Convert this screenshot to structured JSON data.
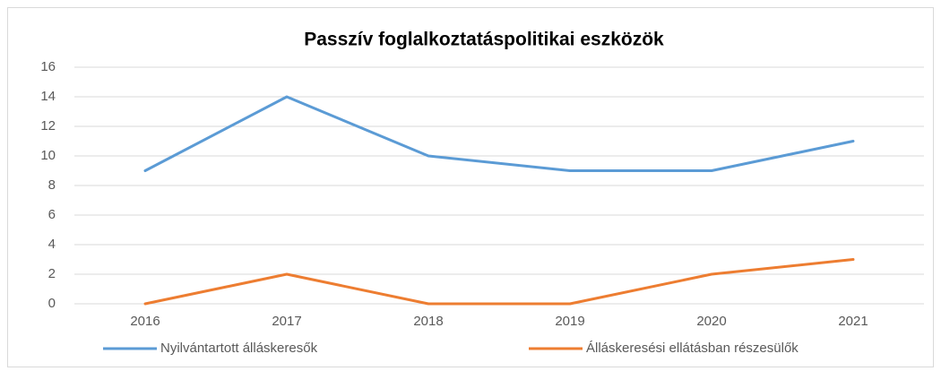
{
  "chart_data": {
    "type": "line",
    "title": "Passzív foglalkoztatáspolitikai eszközök",
    "categories": [
      "2016",
      "2017",
      "2018",
      "2019",
      "2020",
      "2021"
    ],
    "series": [
      {
        "name": "Nyilvántartott álláskeresők",
        "color": "#5b9bd5",
        "values": [
          9,
          14,
          10,
          9,
          9,
          11
        ]
      },
      {
        "name": "Álláskeresési ellátásban részesülők",
        "color": "#ed7d31",
        "values": [
          0,
          2,
          0,
          0,
          2,
          3
        ]
      }
    ],
    "ylim": [
      0,
      16
    ],
    "yticks": [
      0,
      2,
      4,
      6,
      8,
      10,
      12,
      14,
      16
    ],
    "grid": true,
    "legend": "bottom"
  }
}
